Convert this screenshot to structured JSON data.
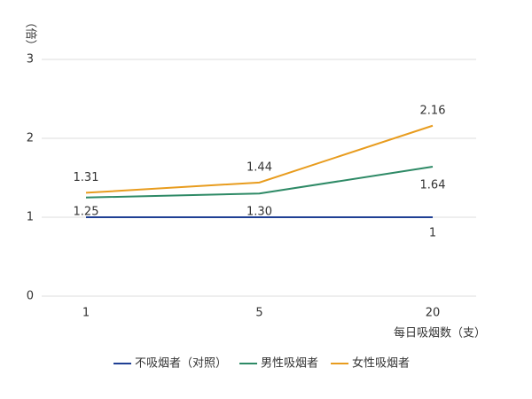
{
  "chart_data": {
    "type": "line",
    "y_label": "（倍）",
    "x_label": "每日吸烟数（支）",
    "categories": [
      "1",
      "5",
      "20"
    ],
    "series": [
      {
        "name": "不吸烟者（对照）",
        "color": "#1f3f94",
        "values": [
          1,
          1,
          1
        ],
        "value_labels": [
          null,
          null,
          "1"
        ]
      },
      {
        "name": "男性吸烟者",
        "color": "#2e8a66",
        "values": [
          1.25,
          1.3,
          1.64
        ],
        "value_labels": [
          "1.25",
          "1.30",
          "1.64"
        ]
      },
      {
        "name": "女性吸烟者",
        "color": "#e89c1e",
        "values": [
          1.31,
          1.44,
          2.16
        ],
        "value_labels": [
          "1.31",
          "1.44",
          "2.16"
        ]
      }
    ],
    "ylim": [
      0,
      3
    ],
    "yticks": [
      0,
      1,
      2,
      3
    ],
    "grid": true,
    "legend": "bottom"
  }
}
